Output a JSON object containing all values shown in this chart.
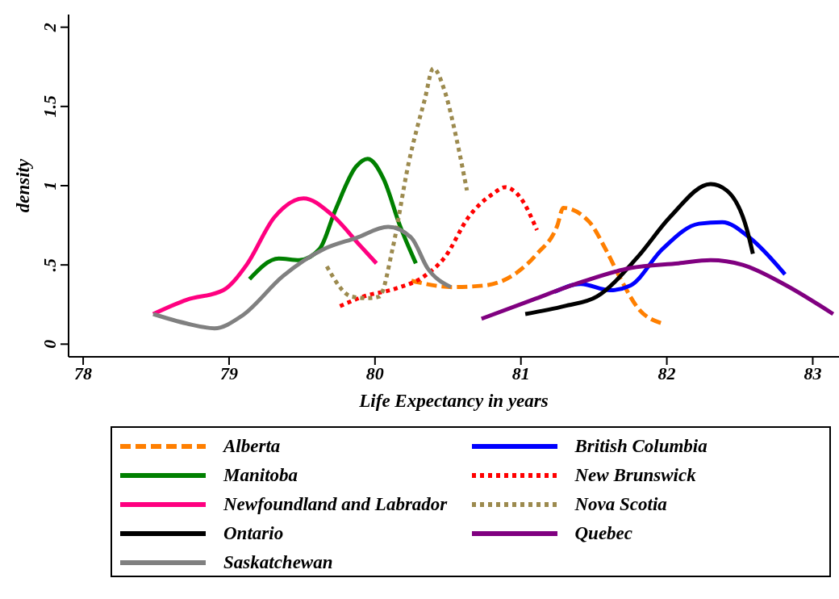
{
  "chart_data": {
    "type": "line",
    "xlabel": "Life Expectancy in years",
    "ylabel": "density",
    "xlim": [
      77.9,
      83.18
    ],
    "ylim": [
      -0.08,
      2.08
    ],
    "xticks": [
      78,
      79,
      80,
      81,
      82,
      83
    ],
    "yticks": [
      0,
      {
        "value": 0.5,
        "label": ".5"
      },
      1,
      1.5,
      2
    ],
    "grid": false,
    "legend": "bottom",
    "marker": "none",
    "series": [
      {
        "name": "Alberta",
        "color": "#ff7f00",
        "line_style": "dashed",
        "x": [
          80.25,
          80.53,
          80.75,
          80.97,
          81.11,
          81.25,
          81.29,
          81.47,
          81.58,
          81.69,
          81.8,
          81.97
        ],
        "values": [
          0.4,
          0.36,
          0.37,
          0.45,
          0.57,
          0.75,
          0.86,
          0.77,
          0.6,
          0.4,
          0.23,
          0.13
        ]
      },
      {
        "name": "British Columbia",
        "color": "#0000ff",
        "line_style": "solid",
        "x": [
          81.23,
          81.41,
          81.61,
          81.75,
          81.97,
          82.22,
          82.38,
          82.57,
          82.81
        ],
        "values": [
          0.33,
          0.38,
          0.34,
          0.37,
          0.6,
          0.76,
          0.77,
          0.67,
          0.44
        ]
      },
      {
        "name": "Manitoba",
        "color": "#008000",
        "line_style": "solid",
        "x": [
          79.14,
          79.34,
          79.48,
          79.62,
          79.73,
          79.87,
          79.95,
          80.06,
          80.17,
          80.28
        ],
        "values": [
          0.41,
          0.54,
          0.53,
          0.6,
          0.85,
          1.12,
          1.17,
          1.04,
          0.75,
          0.51
        ]
      },
      {
        "name": "New Brunswick",
        "color": "#ff0000",
        "line_style": "dotted",
        "x": [
          79.76,
          79.92,
          80.14,
          80.34,
          80.48,
          80.64,
          80.81,
          80.89,
          81.0,
          81.11
        ],
        "values": [
          0.24,
          0.3,
          0.35,
          0.43,
          0.55,
          0.8,
          0.95,
          0.99,
          0.92,
          0.72
        ]
      },
      {
        "name": "Newfoundland and Labrador",
        "color": "#ff0080",
        "line_style": "solid",
        "x": [
          78.48,
          78.71,
          78.96,
          79.12,
          79.31,
          79.51,
          79.7,
          79.9,
          80.01
        ],
        "values": [
          0.19,
          0.28,
          0.34,
          0.5,
          0.8,
          0.92,
          0.82,
          0.62,
          0.51
        ]
      },
      {
        "name": "Nova Scotia",
        "color": "#9c8a4e",
        "line_style": "dotted",
        "x": [
          79.67,
          79.84,
          79.95,
          80.03,
          80.12,
          80.23,
          80.34,
          80.4,
          80.48,
          80.56,
          80.63
        ],
        "values": [
          0.49,
          0.3,
          0.29,
          0.3,
          0.6,
          1.14,
          1.54,
          1.74,
          1.59,
          1.29,
          0.97
        ]
      },
      {
        "name": "Ontario",
        "color": "#000000",
        "line_style": "solid",
        "x": [
          81.03,
          81.3,
          81.52,
          81.8,
          82.02,
          82.3,
          82.41,
          82.55,
          82.59
        ],
        "values": [
          0.19,
          0.24,
          0.3,
          0.55,
          0.8,
          1.01,
          0.97,
          0.72,
          0.57
        ]
      },
      {
        "name": "Quebec",
        "color": "#800080",
        "line_style": "solid",
        "x": [
          80.73,
          81.08,
          81.41,
          81.75,
          82.08,
          82.3,
          82.52,
          82.8,
          83.14
        ],
        "values": [
          0.16,
          0.28,
          0.39,
          0.48,
          0.51,
          0.53,
          0.5,
          0.38,
          0.19
        ]
      },
      {
        "name": "Saskatchewan",
        "color": "#808080",
        "line_style": "solid",
        "x": [
          78.48,
          78.71,
          78.9,
          79.09,
          79.37,
          79.65,
          79.87,
          80.09,
          80.25,
          80.36,
          80.52
        ],
        "values": [
          0.19,
          0.13,
          0.1,
          0.18,
          0.43,
          0.6,
          0.67,
          0.74,
          0.67,
          0.48,
          0.36
        ]
      }
    ]
  }
}
